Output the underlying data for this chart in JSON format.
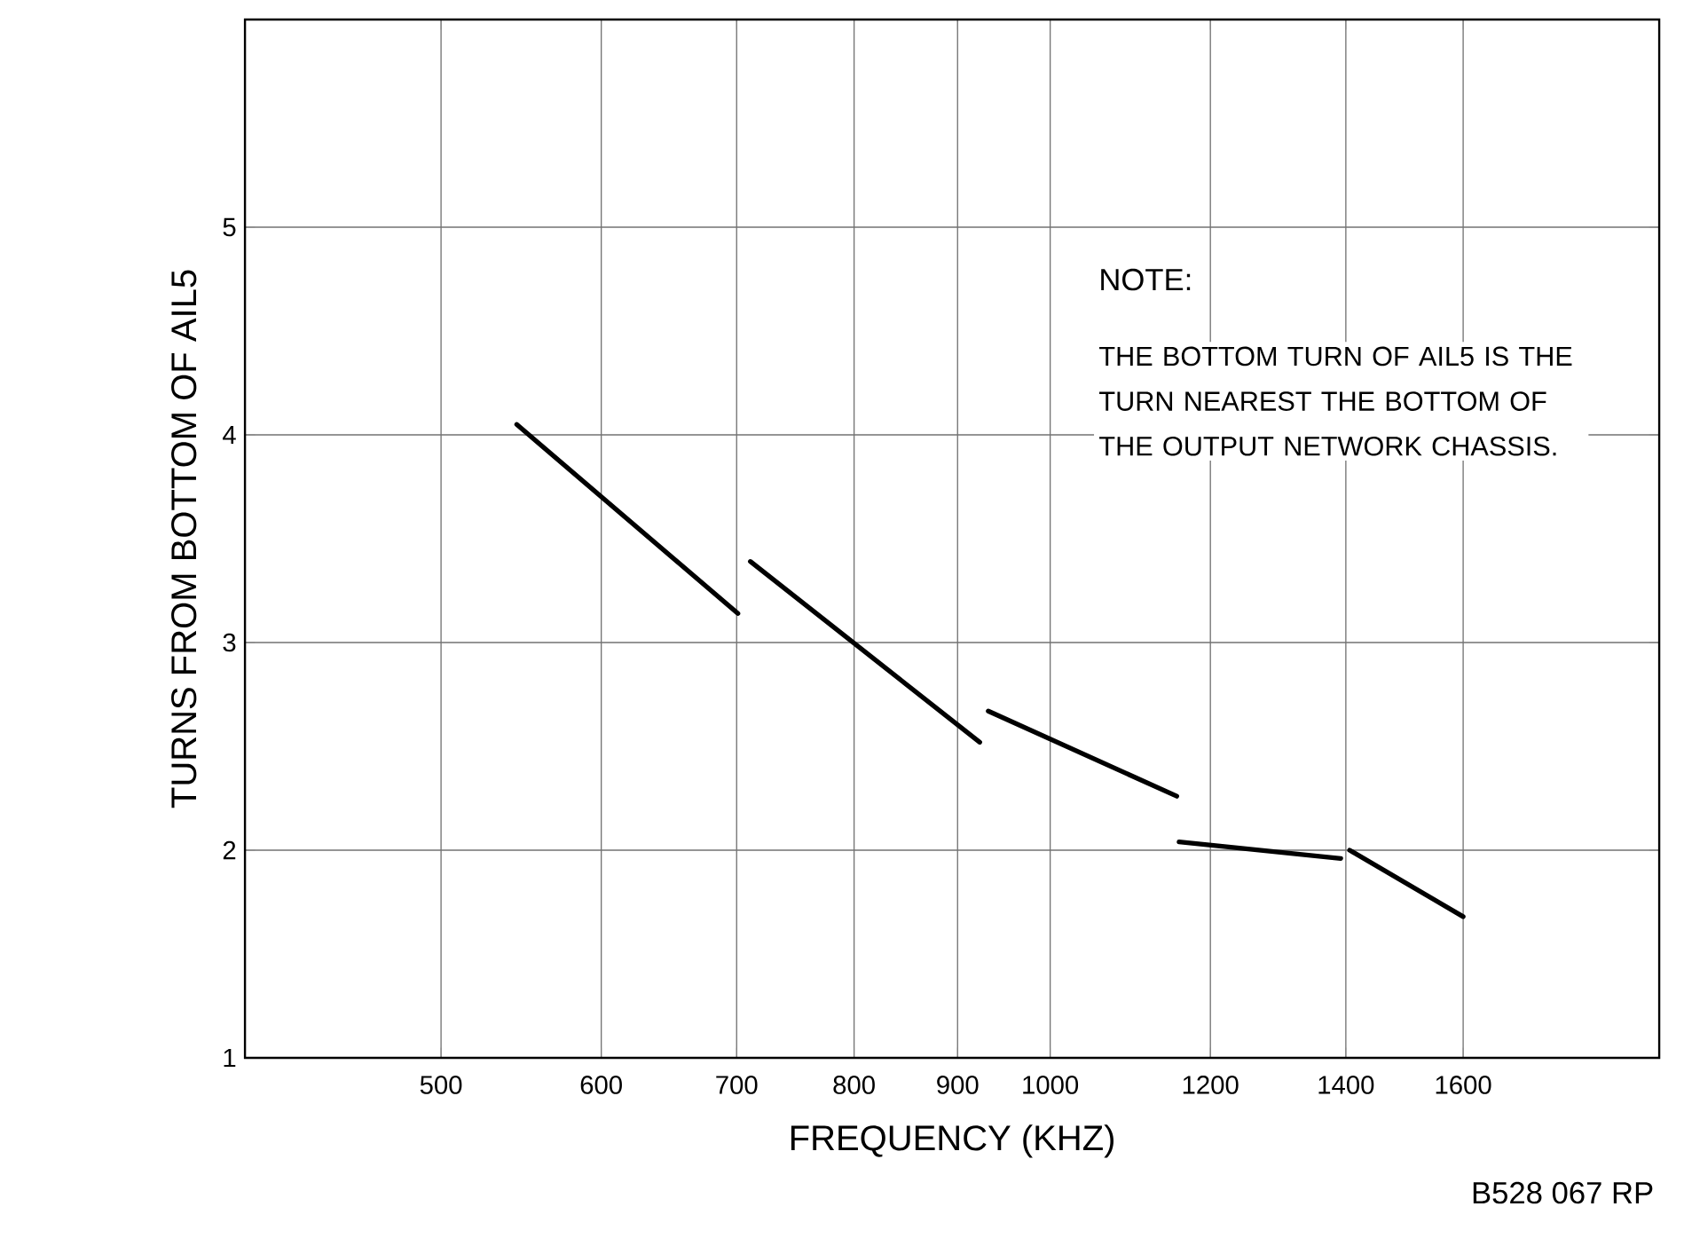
{
  "chart_data": {
    "type": "line",
    "xlabel": "FREQUENCY (KHZ)",
    "ylabel": "TURNS FROM BOTTOM OF AIL5",
    "log": "x",
    "xlim": [
      400,
      2000
    ],
    "ylim": [
      1,
      6
    ],
    "xticks": [
      500,
      600,
      700,
      800,
      900,
      1000,
      1200,
      1400,
      1600
    ],
    "yticks": [
      1,
      2,
      3,
      4,
      5
    ],
    "grid": true,
    "marker": "none",
    "line_style": "solid",
    "series": [
      {
        "color": "#000000",
        "x": [
          545,
          701
        ],
        "values": [
          4.05,
          3.14
        ]
      },
      {
        "color": "#000000",
        "x": [
          711,
          923
        ],
        "values": [
          3.39,
          2.52
        ]
      },
      {
        "color": "#000000",
        "x": [
          932,
          1155
        ],
        "values": [
          2.67,
          2.26
        ]
      },
      {
        "color": "#000000",
        "x": [
          1158,
          1392
        ],
        "values": [
          2.04,
          1.96
        ]
      },
      {
        "color": "#000000",
        "x": [
          1406,
          1600
        ],
        "values": [
          2.0,
          1.68
        ]
      }
    ],
    "annotations": [
      "NOTE:",
      "THE BOTTOM TURN OF AIL5 IS THE TURN NEAREST THE BOTTOM OF THE OUTPUT NETWORK CHASSIS.",
      "B528 067 RP"
    ]
  }
}
